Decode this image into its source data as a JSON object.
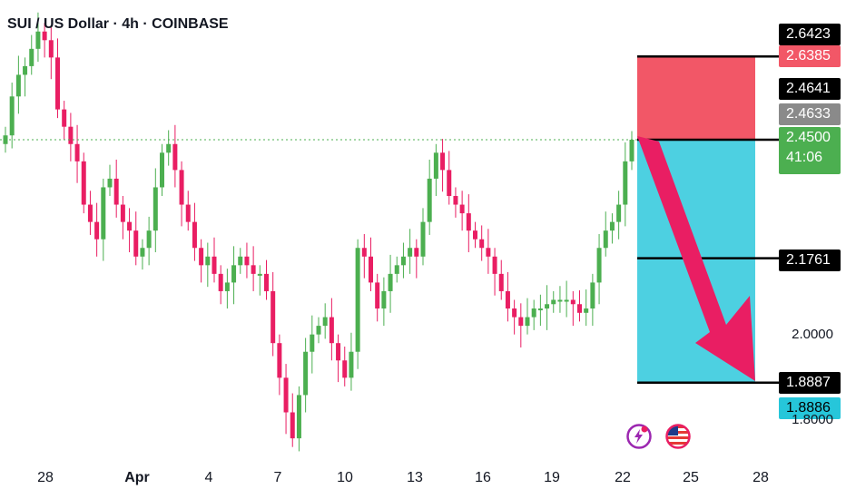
{
  "header": {
    "title": "SUI / US Dollar · 4h · COINBASE"
  },
  "colors": {
    "up": "#4caf50",
    "down": "#e91e63",
    "stop_zone": "#f25767",
    "target_zone": "#4dd0e1",
    "arrow": "#e91e63",
    "last_price_line": "#4caf50",
    "level_line": "#000000"
  },
  "price_axis": {
    "labels": [
      {
        "text": "2.6423",
        "style": "black"
      },
      {
        "text": "2.6385",
        "style": "red"
      },
      {
        "text": "2.4641",
        "style": "black"
      },
      {
        "text": "2.4633",
        "style": "gray"
      },
      {
        "text": "2.4500",
        "style": "green",
        "sub": "41:06"
      },
      {
        "text": "2.1761",
        "style": "black"
      },
      {
        "text": "1.8887",
        "style": "black"
      },
      {
        "text": "1.8886",
        "style": "cyan"
      }
    ],
    "plain_ticks": [
      "2.0000",
      "1.8000"
    ]
  },
  "time_axis": [
    "28",
    "Apr",
    "4",
    "7",
    "10",
    "13",
    "16",
    "19",
    "22",
    "25",
    "28"
  ],
  "icons": [
    "lightning-icon",
    "us-flag-icon"
  ],
  "chart_data": {
    "type": "candlestick",
    "title": "SUI / US Dollar · 4h · COINBASE",
    "x_ticks": [
      "28",
      "Apr",
      "4",
      "7",
      "10",
      "13",
      "16",
      "19",
      "22",
      "25",
      "28"
    ],
    "y_ticks": [
      2.0,
      1.8
    ],
    "last_price": 2.45,
    "countdown": "41:06",
    "position": {
      "direction": "short",
      "entry": 2.45,
      "stop": 2.6423,
      "target": 1.8887,
      "intermediate_level": 2.1761
    },
    "candles_close_path": [
      2.46,
      2.55,
      2.6,
      2.62,
      2.66,
      2.7,
      2.68,
      2.64,
      2.52,
      2.48,
      2.44,
      2.4,
      2.3,
      2.26,
      2.22,
      2.34,
      2.36,
      2.3,
      2.26,
      2.24,
      2.18,
      2.2,
      2.24,
      2.34,
      2.42,
      2.44,
      2.38,
      2.3,
      2.26,
      2.2,
      2.16,
      2.18,
      2.14,
      2.1,
      2.12,
      2.16,
      2.18,
      2.16,
      2.14,
      2.14,
      2.1,
      1.98,
      1.9,
      1.82,
      1.76,
      1.86,
      1.96,
      2.0,
      2.02,
      2.04,
      1.98,
      1.94,
      1.9,
      1.96,
      2.2,
      2.18,
      2.12,
      2.06,
      2.1,
      2.14,
      2.16,
      2.18,
      2.2,
      2.18,
      2.26,
      2.36,
      2.42,
      2.38,
      2.32,
      2.3,
      2.28,
      2.24,
      2.22,
      2.2,
      2.18,
      2.14,
      2.1,
      2.06,
      2.04,
      2.02,
      2.04,
      2.06,
      2.06,
      2.07,
      2.08,
      2.08,
      2.08,
      2.07,
      2.05,
      2.06,
      2.12,
      2.2,
      2.24,
      2.26,
      2.3,
      2.4,
      2.45
    ]
  }
}
